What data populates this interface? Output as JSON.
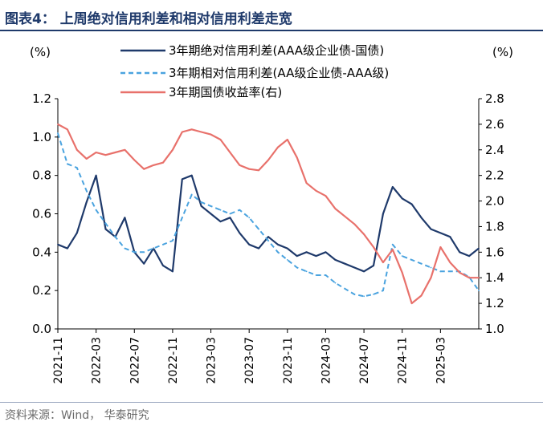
{
  "header": {
    "title": "图表4： 上周绝对信用利差和相对信用利差走宽"
  },
  "footer": {
    "source": "资料来源：Wind， 华泰研究"
  },
  "colors": {
    "title": "#1f3a6b",
    "abs_spread": "#1f3a6b",
    "rel_spread": "#4aa3df",
    "yield": "#e8716b"
  },
  "chart_data": {
    "type": "line",
    "y_left": {
      "label": "(%)",
      "lim": [
        0,
        1.2
      ],
      "ticks": [
        "0.0",
        "0.2",
        "0.4",
        "0.6",
        "0.8",
        "1.0",
        "1.2"
      ]
    },
    "y_right": {
      "label": "(%)",
      "lim": [
        1.0,
        2.8
      ],
      "ticks": [
        "1.0",
        "1.2",
        "1.4",
        "1.6",
        "1.8",
        "2.0",
        "2.2",
        "2.4",
        "2.6",
        "2.8"
      ]
    },
    "x_range": [
      "2021-11",
      "2025-07"
    ],
    "x_ticks": [
      "2021-11",
      "2022-03",
      "2022-07",
      "2022-11",
      "2023-03",
      "2023-07",
      "2023-11",
      "2024-03",
      "2024-07",
      "2024-11",
      "2025-03"
    ],
    "legend_position": "top",
    "series": [
      {
        "name": "3年期绝对信用利差(AAA级企业债-国债)",
        "axis": "left",
        "style": "solid",
        "color": "#1f3a6b",
        "points": [
          [
            "2021-11",
            0.44
          ],
          [
            "2021-12",
            0.42
          ],
          [
            "2022-01",
            0.5
          ],
          [
            "2022-02",
            0.66
          ],
          [
            "2022-03",
            0.8
          ],
          [
            "2022-04",
            0.52
          ],
          [
            "2022-05",
            0.48
          ],
          [
            "2022-06",
            0.58
          ],
          [
            "2022-07",
            0.4
          ],
          [
            "2022-08",
            0.34
          ],
          [
            "2022-09",
            0.42
          ],
          [
            "2022-10",
            0.33
          ],
          [
            "2022-11",
            0.3
          ],
          [
            "2022-12",
            0.78
          ],
          [
            "2023-01",
            0.8
          ],
          [
            "2023-02",
            0.64
          ],
          [
            "2023-03",
            0.6
          ],
          [
            "2023-04",
            0.56
          ],
          [
            "2023-05",
            0.58
          ],
          [
            "2023-06",
            0.5
          ],
          [
            "2023-07",
            0.44
          ],
          [
            "2023-08",
            0.42
          ],
          [
            "2023-09",
            0.48
          ],
          [
            "2023-10",
            0.44
          ],
          [
            "2023-11",
            0.42
          ],
          [
            "2023-12",
            0.38
          ],
          [
            "2024-01",
            0.4
          ],
          [
            "2024-02",
            0.38
          ],
          [
            "2024-03",
            0.4
          ],
          [
            "2024-04",
            0.36
          ],
          [
            "2024-05",
            0.34
          ],
          [
            "2024-06",
            0.32
          ],
          [
            "2024-07",
            0.3
          ],
          [
            "2024-08",
            0.33
          ],
          [
            "2024-09",
            0.6
          ],
          [
            "2024-10",
            0.74
          ],
          [
            "2024-11",
            0.68
          ],
          [
            "2024-12",
            0.65
          ],
          [
            "2025-01",
            0.58
          ],
          [
            "2025-02",
            0.52
          ],
          [
            "2025-03",
            0.5
          ],
          [
            "2025-04",
            0.48
          ],
          [
            "2025-05",
            0.4
          ],
          [
            "2025-06",
            0.38
          ],
          [
            "2025-07",
            0.42
          ]
        ]
      },
      {
        "name": "3年期相对信用利差(AA级企业债-AAA级)",
        "axis": "left",
        "style": "dashed",
        "color": "#4aa3df",
        "points": [
          [
            "2021-11",
            1.02
          ],
          [
            "2021-12",
            0.86
          ],
          [
            "2022-01",
            0.84
          ],
          [
            "2022-02",
            0.72
          ],
          [
            "2022-03",
            0.62
          ],
          [
            "2022-04",
            0.55
          ],
          [
            "2022-05",
            0.48
          ],
          [
            "2022-06",
            0.42
          ],
          [
            "2022-07",
            0.4
          ],
          [
            "2022-08",
            0.4
          ],
          [
            "2022-09",
            0.42
          ],
          [
            "2022-10",
            0.44
          ],
          [
            "2022-11",
            0.46
          ],
          [
            "2022-12",
            0.58
          ],
          [
            "2023-01",
            0.7
          ],
          [
            "2023-02",
            0.66
          ],
          [
            "2023-03",
            0.64
          ],
          [
            "2023-04",
            0.62
          ],
          [
            "2023-05",
            0.6
          ],
          [
            "2023-06",
            0.62
          ],
          [
            "2023-07",
            0.58
          ],
          [
            "2023-08",
            0.52
          ],
          [
            "2023-09",
            0.46
          ],
          [
            "2023-10",
            0.4
          ],
          [
            "2023-11",
            0.36
          ],
          [
            "2023-12",
            0.32
          ],
          [
            "2024-01",
            0.3
          ],
          [
            "2024-02",
            0.28
          ],
          [
            "2024-03",
            0.28
          ],
          [
            "2024-04",
            0.24
          ],
          [
            "2024-05",
            0.21
          ],
          [
            "2024-06",
            0.18
          ],
          [
            "2024-07",
            0.17
          ],
          [
            "2024-08",
            0.18
          ],
          [
            "2024-09",
            0.2
          ],
          [
            "2024-10",
            0.44
          ],
          [
            "2024-11",
            0.38
          ],
          [
            "2024-12",
            0.36
          ],
          [
            "2025-01",
            0.34
          ],
          [
            "2025-02",
            0.32
          ],
          [
            "2025-03",
            0.3
          ],
          [
            "2025-04",
            0.3
          ],
          [
            "2025-05",
            0.3
          ],
          [
            "2025-06",
            0.27
          ],
          [
            "2025-07",
            0.2
          ]
        ]
      },
      {
        "name": "3年期国债收益率(右)",
        "axis": "right",
        "style": "solid",
        "color": "#e8716b",
        "points": [
          [
            "2021-11",
            2.6
          ],
          [
            "2021-12",
            2.56
          ],
          [
            "2022-01",
            2.4
          ],
          [
            "2022-02",
            2.33
          ],
          [
            "2022-03",
            2.38
          ],
          [
            "2022-04",
            2.36
          ],
          [
            "2022-05",
            2.38
          ],
          [
            "2022-06",
            2.4
          ],
          [
            "2022-07",
            2.32
          ],
          [
            "2022-08",
            2.25
          ],
          [
            "2022-09",
            2.28
          ],
          [
            "2022-10",
            2.3
          ],
          [
            "2022-11",
            2.4
          ],
          [
            "2022-12",
            2.54
          ],
          [
            "2023-01",
            2.56
          ],
          [
            "2023-02",
            2.54
          ],
          [
            "2023-03",
            2.52
          ],
          [
            "2023-04",
            2.48
          ],
          [
            "2023-05",
            2.38
          ],
          [
            "2023-06",
            2.28
          ],
          [
            "2023-07",
            2.25
          ],
          [
            "2023-08",
            2.24
          ],
          [
            "2023-09",
            2.32
          ],
          [
            "2023-10",
            2.42
          ],
          [
            "2023-11",
            2.48
          ],
          [
            "2023-12",
            2.34
          ],
          [
            "2024-01",
            2.14
          ],
          [
            "2024-02",
            2.08
          ],
          [
            "2024-03",
            2.04
          ],
          [
            "2024-04",
            1.94
          ],
          [
            "2024-05",
            1.88
          ],
          [
            "2024-06",
            1.82
          ],
          [
            "2024-07",
            1.74
          ],
          [
            "2024-08",
            1.64
          ],
          [
            "2024-09",
            1.52
          ],
          [
            "2024-10",
            1.62
          ],
          [
            "2024-11",
            1.44
          ],
          [
            "2024-12",
            1.2
          ],
          [
            "2025-01",
            1.26
          ],
          [
            "2025-02",
            1.4
          ],
          [
            "2025-03",
            1.64
          ],
          [
            "2025-04",
            1.52
          ],
          [
            "2025-05",
            1.44
          ],
          [
            "2025-06",
            1.4
          ],
          [
            "2025-07",
            1.4
          ]
        ]
      }
    ]
  }
}
